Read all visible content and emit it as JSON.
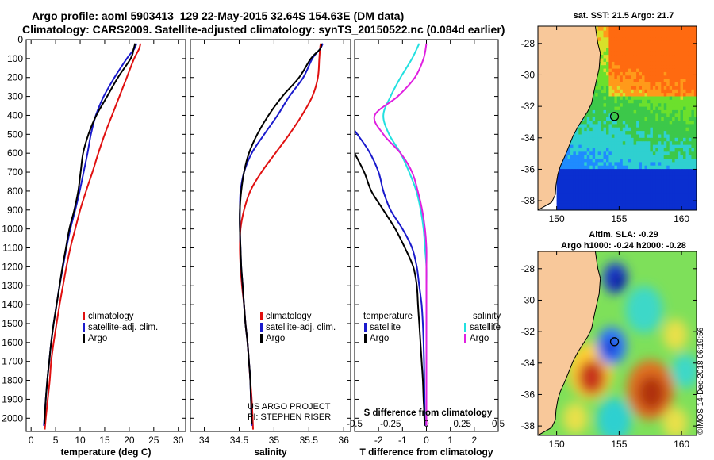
{
  "header": {
    "title_line1": "Argo profile: aoml 5903413_129 22-May-2015 32.64S 154.63E (DM data)",
    "title_line2": "Climatology: CARS2009. Satellite-adjusted climatology: synTS_20150522.nc (0.084d earlier)"
  },
  "colors": {
    "climatology": "#e01010",
    "satellite": "#1a1acc",
    "argo": "#000000",
    "satellite_salinity": "#22e0e0",
    "argo_salinity": "#e020e0",
    "land": "#f8c89a"
  },
  "chart_data": [
    {
      "type": "line",
      "name": "temperature-panel",
      "xlabel": "temperature (deg C)",
      "ylabel": "",
      "xlim": [
        -1,
        31.5
      ],
      "ylim": [
        2070,
        0
      ],
      "xticks": [
        "0",
        "5",
        "10",
        "15",
        "20",
        "25",
        "30"
      ],
      "xtick_values": [
        0,
        5,
        10,
        15,
        20,
        25,
        30
      ],
      "yticks": [
        "0",
        "100",
        "200",
        "300",
        "400",
        "500",
        "600",
        "700",
        "800",
        "900",
        "1000",
        "1100",
        "1200",
        "1300",
        "1400",
        "1500",
        "1600",
        "1700",
        "1800",
        "1900",
        "2000"
      ],
      "ytick_values": [
        0,
        100,
        200,
        300,
        400,
        500,
        600,
        700,
        800,
        900,
        1000,
        1100,
        1200,
        1300,
        1400,
        1500,
        1600,
        1700,
        1800,
        1900,
        2000
      ],
      "legend": [
        "climatology",
        "satellite-adj. clim.",
        "Argo"
      ],
      "series": [
        {
          "name": "climatology",
          "x": [
            22.3,
            22.0,
            21.0,
            19.5,
            18.0,
            16.5,
            15.0,
            13.7,
            12.5,
            11.2,
            10.0,
            9.0,
            8.0,
            7.2,
            6.5,
            5.8,
            5.2,
            4.6,
            4.1,
            3.8,
            3.4,
            3.0,
            2.8
          ],
          "y": [
            20,
            50,
            100,
            200,
            300,
            400,
            500,
            600,
            700,
            800,
            900,
            1000,
            1100,
            1200,
            1300,
            1400,
            1500,
            1600,
            1700,
            1800,
            1900,
            2000,
            2060
          ]
        },
        {
          "name": "satellite-adj. clim.",
          "x": [
            21.5,
            21.0,
            19.5,
            17.0,
            14.8,
            13.2,
            12.2,
            11.5,
            10.7,
            9.9,
            9.0,
            8.0,
            7.2,
            6.5,
            5.8,
            5.2,
            4.6,
            4.1,
            3.7,
            3.3,
            3.0,
            2.6
          ],
          "y": [
            20,
            50,
            100,
            200,
            300,
            400,
            500,
            600,
            700,
            800,
            900,
            1000,
            1100,
            1200,
            1300,
            1400,
            1500,
            1600,
            1700,
            1800,
            1900,
            2040
          ]
        },
        {
          "name": "Argo",
          "x": [
            21.2,
            20.9,
            20.3,
            17.7,
            15.5,
            13.3,
            11.7,
            10.6,
            10.1,
            9.6,
            8.8,
            7.8,
            7.1,
            6.4,
            5.8,
            5.2,
            4.6,
            4.1,
            3.7,
            3.3,
            3.0,
            2.7
          ],
          "y": [
            20,
            50,
            100,
            200,
            300,
            400,
            500,
            600,
            700,
            800,
            900,
            1000,
            1100,
            1200,
            1300,
            1400,
            1500,
            1600,
            1700,
            1800,
            1900,
            2030
          ]
        }
      ]
    },
    {
      "type": "line",
      "name": "salinity-panel",
      "xlabel": "salinity",
      "xlim": [
        33.8,
        36.1
      ],
      "ylim": [
        2070,
        0
      ],
      "xticks": [
        "34",
        "34.5",
        "35",
        "35.5",
        "36"
      ],
      "xtick_values": [
        34,
        34.5,
        35,
        35.5,
        36
      ],
      "legend": [
        "climatology",
        "satellite-adj. clim.",
        "Argo"
      ],
      "annotation": [
        "US ARGO PROJECT",
        "PI: STEPHEN RISER"
      ],
      "series": [
        {
          "name": "climatology",
          "x": [
            35.67,
            35.66,
            35.65,
            35.63,
            35.55,
            35.4,
            35.22,
            35.02,
            34.82,
            34.66,
            34.57,
            34.52,
            34.51,
            34.52,
            34.54,
            34.57,
            34.59,
            34.62,
            34.64,
            34.66,
            34.68,
            34.7
          ],
          "y": [
            20,
            50,
            100,
            200,
            300,
            400,
            500,
            600,
            700,
            800,
            900,
            1000,
            1100,
            1200,
            1300,
            1400,
            1500,
            1600,
            1700,
            1800,
            1900,
            2060
          ]
        },
        {
          "name": "satellite-adj. clim.",
          "x": [
            35.7,
            35.66,
            35.55,
            35.42,
            35.22,
            35.05,
            34.86,
            34.68,
            34.57,
            34.52,
            34.51,
            34.51,
            34.52,
            34.53,
            34.55,
            34.57,
            34.59,
            34.62,
            34.64,
            34.66,
            34.68
          ],
          "y": [
            20,
            50,
            100,
            200,
            300,
            400,
            500,
            600,
            700,
            800,
            900,
            1000,
            1100,
            1200,
            1300,
            1400,
            1500,
            1600,
            1700,
            1800,
            2040
          ]
        },
        {
          "name": "Argo",
          "x": [
            35.68,
            35.66,
            35.53,
            35.36,
            35.12,
            34.92,
            34.76,
            34.64,
            34.57,
            34.53,
            34.51,
            34.51,
            34.52,
            34.53,
            34.55,
            34.57,
            34.59,
            34.62,
            34.64,
            34.66,
            34.68
          ],
          "y": [
            20,
            50,
            100,
            200,
            300,
            400,
            500,
            600,
            700,
            800,
            900,
            1000,
            1100,
            1200,
            1300,
            1400,
            1500,
            1600,
            1700,
            1800,
            2030
          ]
        }
      ]
    },
    {
      "type": "line",
      "name": "difference-panel",
      "xlabel": "T difference from climatology",
      "xlim": [
        -3.0,
        3.0
      ],
      "ylim": [
        2070,
        0
      ],
      "xticks": [
        "-2",
        "-1",
        "0",
        "1",
        "2"
      ],
      "xtick_values": [
        -2,
        -1,
        0,
        1,
        2
      ],
      "secondary_xlabel": "S difference from climatology",
      "secondary_xticks": [
        "-0.5",
        "-0.25",
        "0",
        "0.25",
        "0.5"
      ],
      "secondary_xtick_values": [
        -0.5,
        -0.25,
        0,
        0.25,
        0.5
      ],
      "legend_temperature_title": "temperature",
      "legend_salinity_title": "salinity",
      "legend_temperature": [
        "satellite",
        "Argo"
      ],
      "legend_salinity": [
        "satellite",
        "Argo"
      ],
      "series": [
        {
          "name": "T satellite",
          "x": [
            -3.0,
            -2.4,
            -2.0,
            -1.8,
            -1.5,
            -1.0,
            -0.6,
            -0.4,
            -0.3,
            -0.2,
            -0.15,
            -0.12,
            -0.1,
            -0.09,
            -0.08,
            -0.07
          ],
          "y": [
            480,
            590,
            700,
            800,
            900,
            1000,
            1100,
            1200,
            1300,
            1400,
            1500,
            1600,
            1700,
            1800,
            1900,
            2040
          ]
        },
        {
          "name": "T Argo",
          "x": [
            -3.0,
            -2.6,
            -2.3,
            -1.8,
            -1.3,
            -0.9,
            -0.55,
            -0.4,
            -0.35,
            -0.3,
            -0.25,
            -0.2,
            -0.15,
            -0.12,
            -0.1,
            -0.08
          ],
          "y": [
            600,
            700,
            800,
            900,
            1000,
            1100,
            1200,
            1300,
            1400,
            1500,
            1600,
            1700,
            1800,
            1900,
            1950,
            2030
          ]
        },
        {
          "name": "S satellite",
          "x": [
            -0.05,
            -0.1,
            -0.18,
            -0.25,
            -0.3,
            -0.26,
            -0.18,
            -0.12,
            -0.07,
            -0.04,
            -0.02,
            -0.01,
            0.0,
            0.0,
            0.0,
            0.0,
            0.0,
            0.0,
            0.0
          ],
          "y": [
            20,
            100,
            200,
            300,
            400,
            500,
            600,
            700,
            800,
            900,
            1000,
            1100,
            1200,
            1300,
            1400,
            1500,
            1600,
            1700,
            2040
          ]
        },
        {
          "name": "S Argo",
          "x": [
            0.0,
            -0.02,
            -0.08,
            -0.2,
            -0.36,
            -0.3,
            -0.18,
            -0.1,
            -0.06,
            -0.03,
            -0.01,
            0.0,
            0.0,
            0.0,
            0.0,
            0.0,
            0.0,
            0.0,
            0.0
          ],
          "y": [
            20,
            100,
            200,
            300,
            400,
            500,
            600,
            700,
            800,
            900,
            1000,
            1100,
            1200,
            1300,
            1400,
            1500,
            1600,
            1700,
            2040
          ]
        }
      ]
    },
    {
      "type": "heatmap",
      "name": "sst-map",
      "title": "sat. SST: 21.5 Argo: 21.7",
      "xticks": [
        "150",
        "155",
        "160"
      ],
      "xtick_values": [
        150,
        155,
        160
      ],
      "yticks": [
        "-28",
        "-30",
        "-32",
        "-34",
        "-36",
        "-38"
      ],
      "ytick_values": [
        -28,
        -30,
        -32,
        -34,
        -36,
        -38
      ],
      "xlim": [
        148.5,
        161.2
      ],
      "ylim": [
        -38.6,
        -26.9
      ],
      "argo_position": [
        154.63,
        -32.64
      ]
    },
    {
      "type": "heatmap",
      "name": "sla-map",
      "title_line1": "Altim. SLA: -0.29",
      "title_line2": "Argo h1000: -0.24 h2000: -0.28",
      "xticks": [
        "150",
        "155",
        "160"
      ],
      "xtick_values": [
        150,
        155,
        160
      ],
      "yticks": [
        "-28",
        "-30",
        "-32",
        "-34",
        "-36",
        "-38"
      ],
      "ytick_values": [
        -28,
        -30,
        -32,
        -34,
        -36,
        -38
      ],
      "xlim": [
        148.5,
        161.2
      ],
      "ylim": [
        -38.6,
        -26.9
      ],
      "argo_position": [
        154.63,
        -32.64
      ]
    }
  ],
  "footer": {
    "timestamp": "©IMOS 14-Dec-2018 06:19:56"
  }
}
